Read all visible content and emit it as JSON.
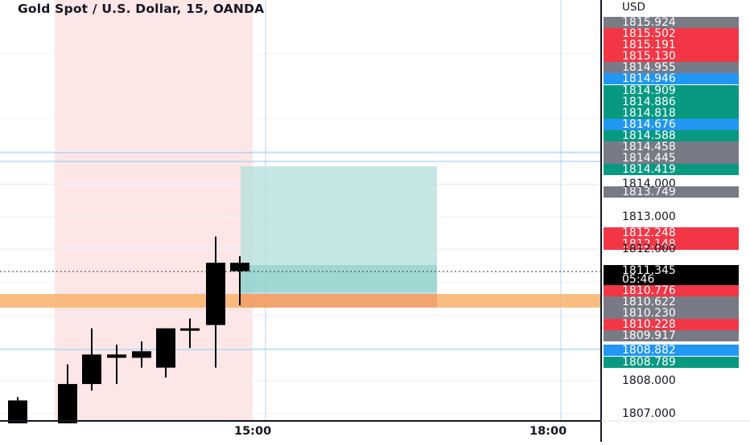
{
  "header": {
    "title": "Gold Spot / U.S. Dollar, 15, OANDA"
  },
  "price_axis": {
    "currency": "USD",
    "ticks": [
      {
        "label": "1814.000",
        "value": 1814.0
      },
      {
        "label": "1813.000",
        "value": 1813.0
      },
      {
        "label": "1812.000",
        "value": 1812.0
      },
      {
        "label": "1808.000",
        "value": 1808.0
      },
      {
        "label": "1807.000",
        "value": 1807.0
      }
    ],
    "badges": [
      {
        "label": "1815.924",
        "color": "#787b86"
      },
      {
        "label": "1815.502",
        "color": "#f23645"
      },
      {
        "label": "1815.191",
        "color": "#f23645"
      },
      {
        "label": "1815.130",
        "color": "#f23645"
      },
      {
        "label": "1814.955",
        "color": "#787b86"
      },
      {
        "label": "1814.946",
        "color": "#2196f3"
      },
      {
        "label": "1814.909",
        "color": "#089981"
      },
      {
        "label": "1814.886",
        "color": "#089981"
      },
      {
        "label": "1814.818",
        "color": "#089981"
      },
      {
        "label": "1814.676",
        "color": "#2196f3"
      },
      {
        "label": "1814.588",
        "color": "#089981"
      },
      {
        "label": "1814.458",
        "color": "#787b86"
      },
      {
        "label": "1814.445",
        "color": "#787b86"
      },
      {
        "label": "1814.419",
        "color": "#089981"
      },
      {
        "label": "1813.749",
        "color": "#787b86"
      },
      {
        "label": "1812.248",
        "color": "#f23645"
      },
      {
        "label": "1812.148",
        "color": "#f23645"
      },
      {
        "label": "1811.345",
        "color": "#000000"
      },
      {
        "label": "05:46",
        "color": "#000000"
      },
      {
        "label": "1810.776",
        "color": "#f23645"
      },
      {
        "label": "1810.622",
        "color": "#787b86"
      },
      {
        "label": "1810.230",
        "color": "#787b86"
      },
      {
        "label": "1810.228",
        "color": "#f23645"
      },
      {
        "label": "1809.917",
        "color": "#787b86"
      },
      {
        "label": "1808.882",
        "color": "#2196f3"
      },
      {
        "label": "1808.789",
        "color": "#089981"
      }
    ]
  },
  "time_axis": {
    "ticks": [
      "15:00",
      "18:00"
    ]
  },
  "chart_data": {
    "type": "candlestick",
    "symbol": "Gold Spot / U.S. Dollar",
    "timeframe": "15",
    "source": "OANDA",
    "current_price": 1811.345,
    "countdown": "05:46",
    "candles": [
      {
        "open": 1807.4,
        "high": 1807.5,
        "low": 1806.7,
        "close": 1806.7
      },
      {
        "open": 1806.7,
        "high": 1808.5,
        "low": 1806.7,
        "close": 1807.9
      },
      {
        "open": 1807.9,
        "high": 1809.6,
        "low": 1807.7,
        "close": 1808.8
      },
      {
        "open": 1808.8,
        "high": 1809.1,
        "low": 1807.9,
        "close": 1808.7
      },
      {
        "open": 1808.7,
        "high": 1809.2,
        "low": 1808.4,
        "close": 1808.9
      },
      {
        "open": 1808.4,
        "high": 1809.6,
        "low": 1808.1,
        "close": 1809.6
      },
      {
        "open": 1809.6,
        "high": 1809.9,
        "low": 1809.0,
        "close": 1809.6
      },
      {
        "open": 1809.7,
        "high": 1812.4,
        "low": 1808.4,
        "close": 1811.6
      },
      {
        "open": 1811.6,
        "high": 1811.8,
        "low": 1810.3,
        "close": 1811.345
      }
    ],
    "long_position": {
      "entry": 1810.7,
      "target": 1814.419,
      "stop": 1810.3
    },
    "support_zone": {
      "from": 1810.3,
      "to": 1810.7
    },
    "horizontal_lines": [
      1814.458,
      1814.419,
      1808.882
    ]
  }
}
